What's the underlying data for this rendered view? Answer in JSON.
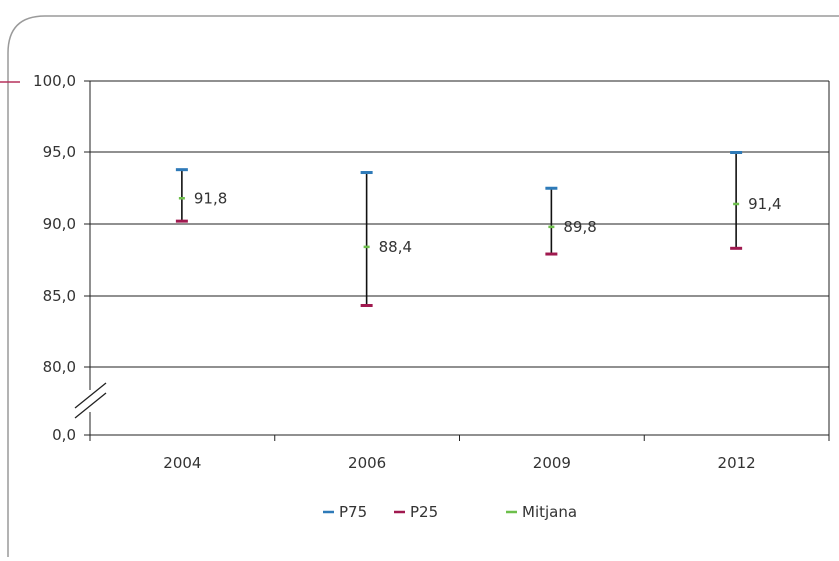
{
  "chart_data": {
    "type": "range",
    "categories": [
      "2004",
      "2006",
      "2009",
      "2012"
    ],
    "y_ticks": [
      "100,0",
      "95,0",
      "90,0",
      "85,0",
      "80,0",
      "0,0"
    ],
    "y_tick_values": [
      100,
      95,
      90,
      85,
      80
    ],
    "ylim": [
      78,
      100
    ],
    "axis_break": true,
    "grid": true,
    "legend_position": "bottom",
    "series": [
      {
        "name": "P75",
        "color": "#2e7ab8",
        "values": [
          93.8,
          93.6,
          92.5,
          95.0
        ]
      },
      {
        "name": "P25",
        "color": "#a0194f",
        "values": [
          90.2,
          84.3,
          87.9,
          88.3
        ]
      },
      {
        "name": "Mitjana",
        "color": "#6dbf4b",
        "values": [
          91.8,
          88.4,
          89.8,
          91.4
        ]
      }
    ],
    "median_labels": [
      "91,8",
      "88,4",
      "89,8",
      "91,4"
    ]
  }
}
